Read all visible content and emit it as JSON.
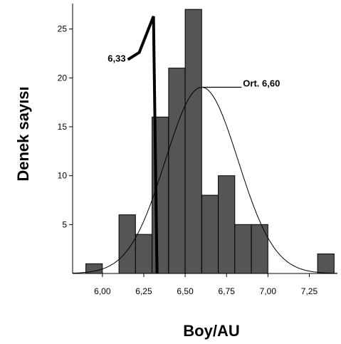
{
  "chart_data": {
    "type": "bar",
    "xlabel": "Boy/AU",
    "ylabel": "Denek sayısı",
    "bin_width": 0.1,
    "xlim": [
      5.82,
      7.42
    ],
    "ylim": [
      0,
      27.6
    ],
    "x_ticks": [
      6.0,
      6.25,
      6.5,
      6.75,
      7.0,
      7.25
    ],
    "x_tick_labels": [
      "6,00",
      "6,25",
      "6,50",
      "6,75",
      "7,00",
      "7,25"
    ],
    "y_ticks": [
      5,
      10,
      15,
      20,
      25
    ],
    "y_tick_labels": [
      "5",
      "10",
      "15",
      "20",
      "25"
    ],
    "bins": [
      {
        "x": 5.95,
        "count": 1
      },
      {
        "x": 6.15,
        "count": 6
      },
      {
        "x": 6.25,
        "count": 4
      },
      {
        "x": 6.35,
        "count": 16
      },
      {
        "x": 6.45,
        "count": 21
      },
      {
        "x": 6.55,
        "count": 27
      },
      {
        "x": 6.65,
        "count": 8
      },
      {
        "x": 6.75,
        "count": 10
      },
      {
        "x": 6.85,
        "count": 5
      },
      {
        "x": 6.95,
        "count": 5
      },
      {
        "x": 7.35,
        "count": 2
      }
    ],
    "normal_curve": {
      "mean": 6.6,
      "sd": 0.22,
      "n": 105
    },
    "cutoff": {
      "x": 6.33,
      "label": "6,33"
    },
    "mean_label": "Ort. 6,60",
    "bar_color": "#555555",
    "grid": false,
    "legend": "none"
  }
}
